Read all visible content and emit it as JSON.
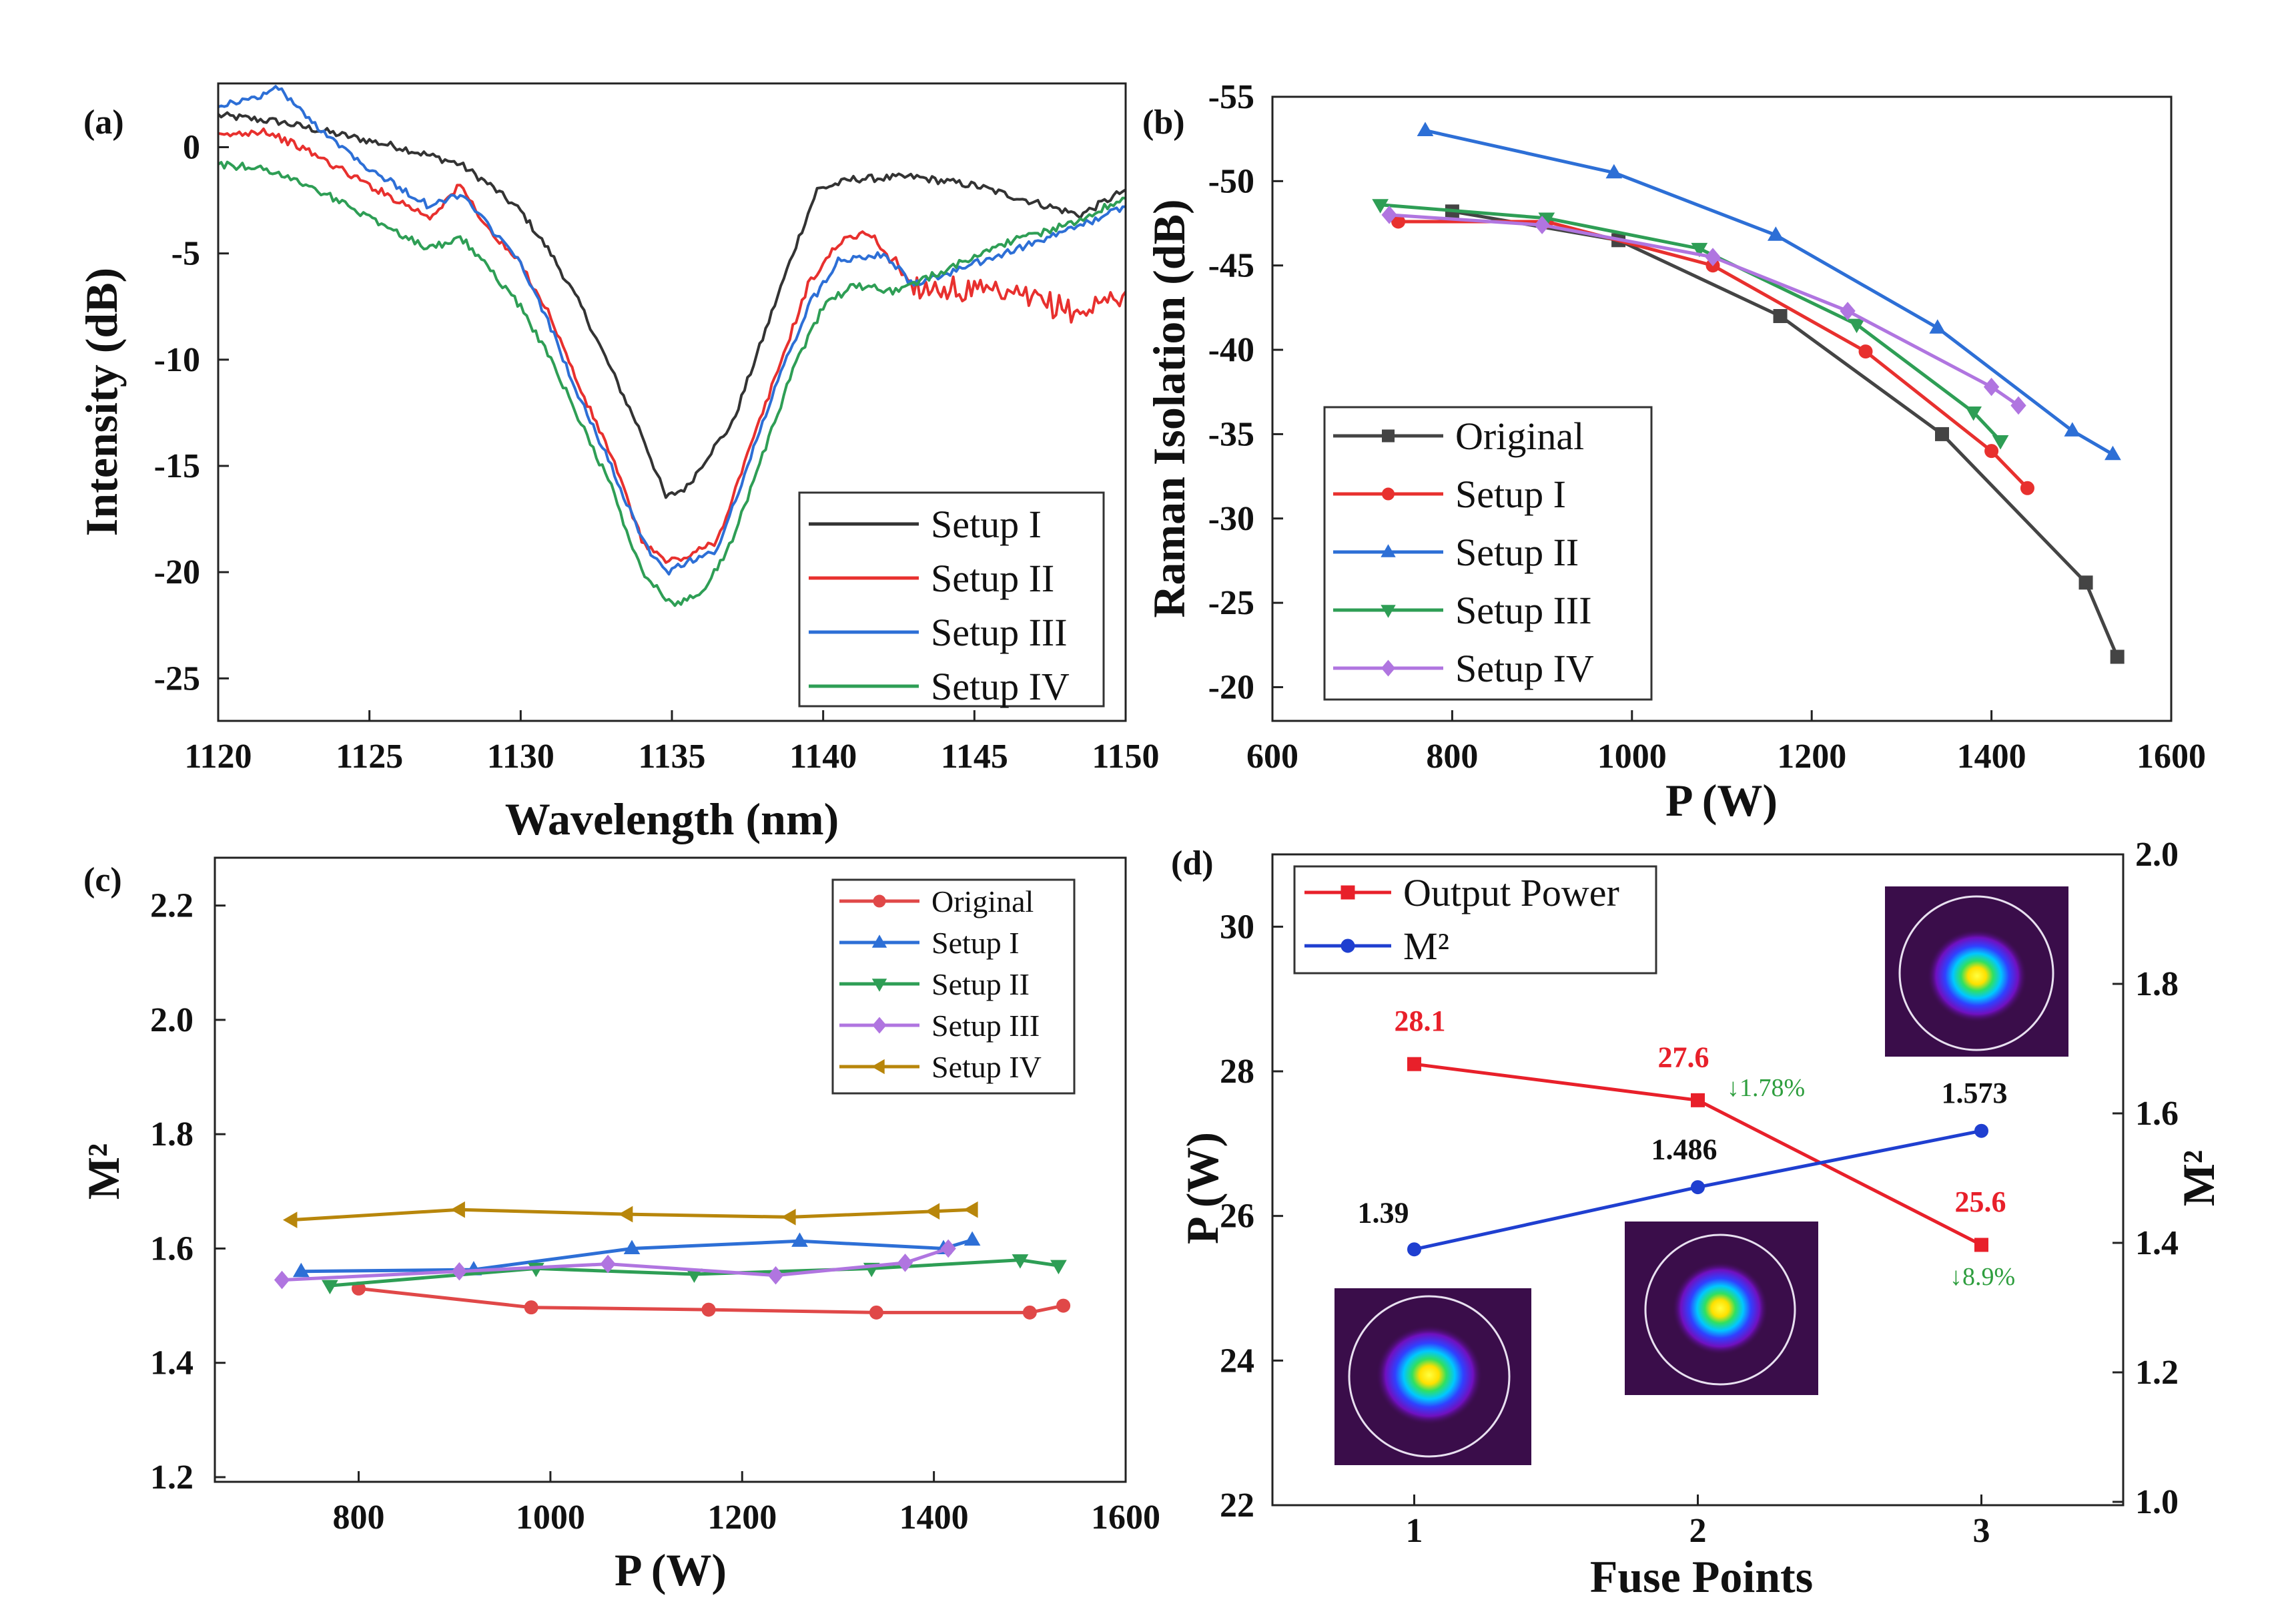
{
  "chart_data": [
    {
      "panel": "(a)",
      "type": "line",
      "xlabel": "Wavelength (nm)",
      "ylabel": "Intensity (dB)",
      "xlim": [
        1120,
        1150
      ],
      "ylim": [
        -27,
        3
      ],
      "xticks": [
        1120,
        1125,
        1130,
        1135,
        1140,
        1145,
        1150
      ],
      "yticks": [
        0,
        -5,
        -10,
        -15,
        -20,
        -25
      ],
      "tick_labels_x": [
        "1120",
        "1125",
        "1130",
        "1135",
        "1140",
        "1145",
        "1150"
      ],
      "tick_labels_y": [
        "0",
        "-5",
        "-10",
        "-15",
        "-20",
        "-25"
      ],
      "legend_position": "lower-right",
      "series": [
        {
          "name": "Setup I",
          "color": "#333333",
          "x": [
            1120,
            1122,
            1124,
            1126,
            1128,
            1129,
            1130,
            1131,
            1132,
            1133,
            1134,
            1134.8,
            1135.5,
            1136.2,
            1137,
            1138,
            1139,
            1139.8,
            1141,
            1143,
            1145,
            1147,
            1148.5,
            1150
          ],
          "y": [
            1.5,
            1.2,
            0.6,
            0,
            -0.8,
            -1.8,
            -3,
            -5,
            -7.5,
            -10.5,
            -13.5,
            -16.5,
            -16,
            -14.5,
            -13,
            -9,
            -5,
            -2,
            -1.5,
            -1.4,
            -1.8,
            -2.6,
            -3.2,
            -2
          ]
        },
        {
          "name": "Setup II",
          "color": "#e8302e",
          "x": [
            1120,
            1121.5,
            1123,
            1125,
            1127,
            1128,
            1129,
            1130,
            1131,
            1132,
            1133,
            1134,
            1134.8,
            1135.5,
            1136.5,
            1137.5,
            1138.5,
            1139.5,
            1140.5,
            1141.5,
            1143,
            1145,
            1147,
            1148.5,
            1150
          ],
          "y": [
            0.5,
            0.8,
            -0.2,
            -1.8,
            -3.3,
            -1.8,
            -4,
            -5.5,
            -8,
            -11.5,
            -14.5,
            -18.5,
            -19.5,
            -19.3,
            -18.5,
            -14.5,
            -10.5,
            -6.5,
            -4.5,
            -4,
            -6.5,
            -6.8,
            -7.2,
            -7.8,
            -6.8
          ]
        },
        {
          "name": "Setup III",
          "color": "#2d6fd6",
          "x": [
            1120,
            1121,
            1122,
            1123,
            1125,
            1127,
            1128,
            1129,
            1130,
            1131,
            1132,
            1133,
            1134,
            1134.8,
            1135.5,
            1136.5,
            1137.5,
            1138.5,
            1139.5,
            1140.5,
            1142,
            1143,
            1145,
            1147,
            1148.5,
            1150
          ],
          "y": [
            2,
            2.2,
            2.8,
            1.3,
            -1,
            -2.8,
            -2.2,
            -3.8,
            -5.5,
            -8.5,
            -12,
            -15,
            -18.5,
            -20,
            -19.5,
            -19,
            -15,
            -11,
            -7.5,
            -5.3,
            -5,
            -6.5,
            -5.5,
            -4.5,
            -3.7,
            -2.8
          ]
        },
        {
          "name": "Setup IV",
          "color": "#2e9e55",
          "x": [
            1120,
            1121.5,
            1123,
            1125,
            1127,
            1128,
            1129,
            1130,
            1131,
            1132,
            1133,
            1134,
            1135,
            1136,
            1137,
            1138,
            1139,
            1140,
            1141,
            1142.5,
            1144,
            1146,
            1148,
            1150
          ],
          "y": [
            -0.8,
            -1,
            -1.8,
            -3.3,
            -4.8,
            -4.2,
            -5.8,
            -7.5,
            -10,
            -13,
            -16,
            -20,
            -21.5,
            -21,
            -18.5,
            -14.5,
            -10.5,
            -7.5,
            -6.5,
            -6.8,
            -5.8,
            -4.5,
            -3.7,
            -2.4
          ]
        }
      ]
    },
    {
      "panel": "(b)",
      "type": "line",
      "xlabel": "P (W)",
      "ylabel": "Raman Isolation (dB)",
      "xlim": [
        600,
        1600
      ],
      "ylim": [
        -55,
        -18
      ],
      "y_axis_inverted": true,
      "xticks": [
        600,
        800,
        1000,
        1200,
        1400,
        1600
      ],
      "yticks": [
        -55,
        -50,
        -45,
        -40,
        -35,
        -30,
        -25,
        -20
      ],
      "tick_labels_x": [
        "600",
        "800",
        "1000",
        "1200",
        "1400",
        "1600"
      ],
      "tick_labels_y": [
        "-55",
        "-50",
        "-45",
        "-40",
        "-35",
        "-30",
        "-25",
        "-20"
      ],
      "legend_position": "lower-left",
      "series": [
        {
          "name": "Original",
          "color": "#444444",
          "marker": "square",
          "x": [
            800,
            985,
            1165,
            1345,
            1505,
            1540
          ],
          "y": [
            -48.2,
            -46.5,
            -42.0,
            -35.0,
            -26.2,
            -21.8
          ]
        },
        {
          "name": "Setup I",
          "color": "#e8302e",
          "marker": "circle",
          "x": [
            740,
            905,
            1090,
            1260,
            1400,
            1440
          ],
          "y": [
            -47.6,
            -47.6,
            -45.0,
            -39.9,
            -34.0,
            -31.8
          ]
        },
        {
          "name": "Setup II",
          "color": "#2d6fd6",
          "marker": "triangle-up",
          "x": [
            770,
            980,
            1160,
            1340,
            1490,
            1535
          ],
          "y": [
            -53.0,
            -50.5,
            -46.8,
            -41.3,
            -35.2,
            -33.8
          ]
        },
        {
          "name": "Setup III",
          "color": "#2e9e55",
          "marker": "triangle-down",
          "x": [
            720,
            905,
            1075,
            1250,
            1380,
            1410
          ],
          "y": [
            -48.6,
            -47.8,
            -46.0,
            -41.5,
            -36.3,
            -34.6
          ]
        },
        {
          "name": "Setup IV",
          "color": "#b075e0",
          "marker": "diamond",
          "x": [
            730,
            900,
            1090,
            1240,
            1400,
            1430
          ],
          "y": [
            -48.0,
            -47.4,
            -45.5,
            -42.3,
            -37.8,
            -36.7
          ]
        }
      ]
    },
    {
      "panel": "(c)",
      "type": "line",
      "xlabel": "P (W)",
      "ylabel": "M²",
      "xlim": [
        650,
        1600
      ],
      "ylim": [
        1.2,
        2.3
      ],
      "xticks": [
        800,
        1000,
        1200,
        1400,
        1600
      ],
      "yticks": [
        1.2,
        1.4,
        1.6,
        1.8,
        2.0,
        2.2
      ],
      "tick_labels_x": [
        "800",
        "1000",
        "1200",
        "1400",
        "1600"
      ],
      "tick_labels_y": [
        "1.2",
        "1.4",
        "1.6",
        "1.8",
        "2.0",
        "2.2"
      ],
      "legend_position": "top-right",
      "series": [
        {
          "name": "Original",
          "color": "#e04848",
          "marker": "circle",
          "x": [
            800,
            980,
            1165,
            1340,
            1500,
            1535
          ],
          "y": [
            1.53,
            1.497,
            1.493,
            1.488,
            1.488,
            1.5
          ]
        },
        {
          "name": "Setup I",
          "color": "#2d6fd6",
          "marker": "triangle-up",
          "x": [
            740,
            920,
            1085,
            1260,
            1410,
            1440
          ],
          "y": [
            1.56,
            1.563,
            1.6,
            1.613,
            1.6,
            1.615
          ]
        },
        {
          "name": "Setup II",
          "color": "#2e9e55",
          "marker": "triangle-down",
          "x": [
            770,
            985,
            1150,
            1335,
            1490,
            1530
          ],
          "y": [
            1.535,
            1.565,
            1.555,
            1.565,
            1.58,
            1.57
          ]
        },
        {
          "name": "Setup III",
          "color": "#b075e0",
          "marker": "diamond",
          "x": [
            720,
            905,
            1060,
            1235,
            1370,
            1415
          ],
          "y": [
            1.545,
            1.56,
            1.573,
            1.553,
            1.575,
            1.6
          ]
        },
        {
          "name": "Setup IV",
          "color": "#b8860b",
          "marker": "triangle-left",
          "x": [
            730,
            905,
            1080,
            1250,
            1400,
            1440
          ],
          "y": [
            1.65,
            1.668,
            1.66,
            1.655,
            1.665,
            1.668
          ]
        }
      ]
    },
    {
      "panel": "(d)",
      "type": "line",
      "xlabel": "Fuse Points",
      "ylabel": "P (W)",
      "ylabel_right": "M²",
      "xlim": [
        0.5,
        3.5
      ],
      "ylim": [
        22,
        31
      ],
      "ylim_right": [
        1.0,
        2.0
      ],
      "xticks": [
        1,
        2,
        3
      ],
      "yticks": [
        22,
        24,
        26,
        28,
        30
      ],
      "yticks_right": [
        1.0,
        1.2,
        1.4,
        1.6,
        1.8,
        2.0
      ],
      "tick_labels_x": [
        "1",
        "2",
        "3"
      ],
      "tick_labels_y": [
        "22",
        "24",
        "26",
        "28",
        "30"
      ],
      "tick_labels_y_right": [
        "1.0",
        "1.2",
        "1.4",
        "1.6",
        "1.8",
        "2.0"
      ],
      "legend_position": "top-left",
      "series": [
        {
          "name": "Output Power",
          "color": "#e8202a",
          "marker": "square",
          "axis": "left",
          "x": [
            1,
            2,
            3
          ],
          "y": [
            28.1,
            27.6,
            25.6
          ],
          "labels": [
            "28.1",
            "27.6",
            "25.6"
          ]
        },
        {
          "name": "M²",
          "color": "#1f3fd0",
          "marker": "circle",
          "axis": "right",
          "x": [
            1,
            2,
            3
          ],
          "y": [
            1.39,
            1.486,
            1.573
          ],
          "labels": [
            "1.39",
            "1.486",
            "1.573"
          ]
        }
      ],
      "annotations": [
        "↓1.78%",
        "↓8.9%"
      ]
    }
  ]
}
